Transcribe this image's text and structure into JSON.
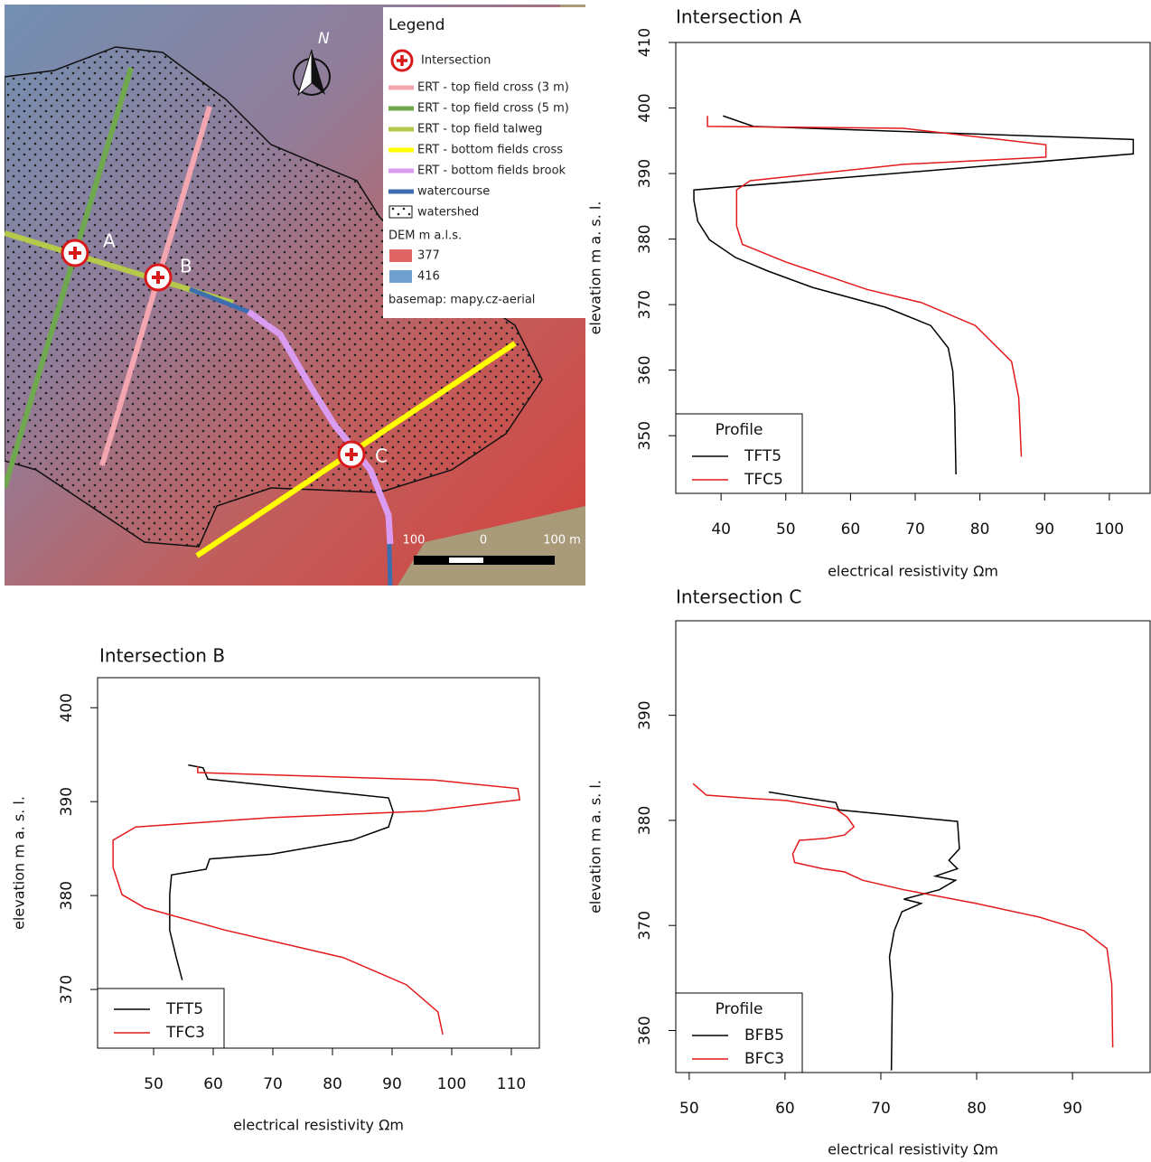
{
  "map": {
    "legend": {
      "title": "Legend",
      "items": [
        "Intersection",
        "ERT - top field cross (3 m)",
        "ERT - top field cross (5 m)",
        "ERT - top field talweg",
        "ERT - bottom fields cross",
        "ERT - bottom fields brook",
        "watercourse",
        "watershed"
      ],
      "dem_title": "DEM m a.l.s.",
      "dem_items": [
        "377",
        "416"
      ],
      "basemap": "basemap: mapy.cz-aerial"
    },
    "markers": [
      "A",
      "B",
      "C"
    ],
    "north": "N",
    "scale": [
      "100",
      "0",
      "100 m"
    ]
  },
  "chart_data": [
    {
      "type": "line",
      "title": "Intersection A",
      "xlabel": "electrical resistivity  Ωm",
      "ylabel": "elevation m a. s. l.",
      "xlim": [
        33.0,
        106.3
      ],
      "ylim": [
        341.2,
        410
      ],
      "xticks": [
        40,
        50,
        60,
        70,
        80,
        90,
        100
      ],
      "yticks": [
        350,
        360,
        370,
        380,
        390,
        400,
        410
      ],
      "legend_title": "Profile",
      "legend": "bottom left",
      "series": [
        {
          "name": "TFT5",
          "color": "#000000",
          "x": [
            40.3,
            45.0,
            103.7,
            103.7,
            35.8,
            35.8,
            36.4,
            38.2,
            42.2,
            47.3,
            54.2,
            65.4,
            72.4,
            75.1,
            75.8,
            76.1,
            76.3
          ],
          "values": [
            398.8,
            397.2,
            395.2,
            393.0,
            387.5,
            385.9,
            382.7,
            379.9,
            377.2,
            375.1,
            372.6,
            369.6,
            366.8,
            363.4,
            359.9,
            354.4,
            344.1
          ]
        },
        {
          "name": "TFC5",
          "color": "#e31a1c",
          "x": [
            37.9,
            37.9,
            68.2,
            90.2,
            90.2,
            68.2,
            44.5,
            42.4,
            42.4,
            43.3,
            50.0,
            62.6,
            71.0,
            79.3,
            84.9,
            86.0,
            86.4
          ],
          "values": [
            398.8,
            397.2,
            396.9,
            394.4,
            392.5,
            391.4,
            388.9,
            387.5,
            382.0,
            379.2,
            376.5,
            372.3,
            370.3,
            366.8,
            361.3,
            355.8,
            346.8
          ]
        }
      ]
    },
    {
      "type": "line",
      "title": "Intersection B",
      "xlabel": "electrical resistivity  Ωm",
      "ylabel": "elevation m a. s. l.",
      "xlim": [
        40.6,
        114.7
      ],
      "ylim": [
        363.75,
        403.2
      ],
      "xticks": [
        50,
        60,
        70,
        80,
        90,
        100,
        110
      ],
      "yticks": [
        370,
        380,
        390,
        400
      ],
      "legend": "bottom left",
      "series": [
        {
          "name": "TFT5",
          "color": "#000000",
          "x": [
            55.8,
            58.3,
            59.1,
            77.3,
            89.4,
            90.2,
            89.4,
            83.3,
            69.7,
            59.4,
            58.8,
            53.0,
            52.7,
            52.7,
            53.8,
            54.8
          ],
          "values": [
            393.9,
            393.6,
            392.4,
            391.2,
            390.4,
            388.9,
            387.3,
            385.9,
            384.4,
            383.9,
            382.8,
            382.2,
            380.1,
            376.3,
            373.4,
            371.0
          ]
        },
        {
          "name": "TFC3",
          "color": "#e31a1c",
          "x": [
            57.4,
            57.4,
            97.0,
            111.1,
            111.4,
            95.5,
            69.7,
            47.0,
            43.2,
            43.2,
            44.7,
            48.5,
            62.1,
            81.8,
            92.4,
            97.7,
            98.5
          ],
          "values": [
            393.8,
            393.1,
            392.3,
            391.4,
            390.2,
            389.0,
            388.3,
            387.3,
            385.9,
            383.0,
            380.1,
            378.7,
            376.3,
            373.4,
            370.5,
            367.6,
            365.2
          ]
        }
      ]
    },
    {
      "type": "line",
      "title": "Intersection C",
      "xlabel": "electrical resistivity  Ωm",
      "ylabel": "elevation m a. s. l.",
      "xlim": [
        48.6,
        98.1
      ],
      "ylim": [
        356.0,
        399.0
      ],
      "xticks": [
        50,
        60,
        70,
        80,
        90
      ],
      "yticks": [
        360,
        370,
        380,
        390
      ],
      "legend_title": "Profile",
      "legend": "bottom left",
      "series": [
        {
          "name": "BFB5",
          "color": "#000000",
          "x": [
            58.3,
            61.0,
            65.3,
            65.6,
            78.0,
            78.2,
            77.1,
            78.0,
            75.7,
            77.8,
            76.1,
            72.4,
            74.2,
            72.2,
            71.4,
            70.9,
            71.2,
            71.1
          ],
          "values": [
            382.7,
            382.3,
            381.7,
            381.0,
            379.9,
            377.3,
            376.2,
            375.4,
            374.7,
            374.3,
            373.4,
            372.5,
            372.1,
            371.3,
            369.5,
            367.0,
            363.5,
            356.2
          ]
        },
        {
          "name": "BFC3",
          "color": "#e31a1c",
          "x": [
            50.4,
            51.8,
            56.3,
            60.1,
            65.3,
            66.5,
            67.2,
            66.2,
            64.3,
            61.5,
            60.8,
            61.0,
            63.9,
            66.2,
            68.1,
            72.4,
            79.9,
            86.5,
            91.2,
            93.6,
            94.1,
            94.2
          ],
          "values": [
            383.5,
            382.4,
            382.1,
            381.9,
            381.1,
            380.3,
            379.4,
            378.6,
            378.3,
            378.1,
            376.8,
            376.0,
            375.4,
            375.1,
            374.3,
            373.4,
            372.1,
            370.8,
            369.5,
            367.8,
            364.4,
            358.4
          ]
        }
      ]
    }
  ]
}
